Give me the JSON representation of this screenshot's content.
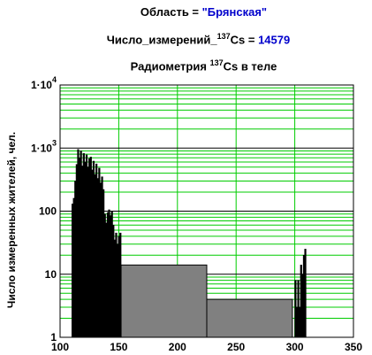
{
  "header": {
    "line1_label": "Область = ",
    "line1_value": "\"Брянская\"",
    "line2_label_pre": "Число_измерений_",
    "line2_sup": "137",
    "line2_label_post": "Cs = ",
    "line2_value": "14579",
    "line3_pre": "Радиометрия ",
    "line3_sup": "137",
    "line3_post": "Cs в теле"
  },
  "chart_data": {
    "type": "bar",
    "ylabel": "Число измеренных жителей, чел.",
    "x_ticks": [
      "100",
      "150",
      "200",
      "250",
      "300",
      "350"
    ],
    "y_tick_labels": [
      {
        "base": "1",
        "exp": ""
      },
      {
        "base": "10",
        "exp": ""
      },
      {
        "base": "100",
        "exp": ""
      },
      {
        "base": "1·10",
        "exp": "3"
      },
      {
        "base": "1·10",
        "exp": "4"
      }
    ],
    "xlim": [
      100,
      350
    ],
    "ylim": [
      1,
      10000
    ],
    "y_scale": "log",
    "grid": true,
    "colors": {
      "grid_major": "#000000",
      "grid_minor": "#00cc00",
      "thin_bars": "#000000",
      "wide_bars": "#808080"
    },
    "bars": [
      {
        "x0": 110.0,
        "x1": 111.2,
        "y": 130
      },
      {
        "x0": 111.2,
        "x1": 112.4,
        "y": 160
      },
      {
        "x0": 112.4,
        "x1": 113.6,
        "y": 300
      },
      {
        "x0": 113.6,
        "x1": 114.8,
        "y": 550
      },
      {
        "x0": 114.8,
        "x1": 116.0,
        "y": 950
      },
      {
        "x0": 116.0,
        "x1": 117.2,
        "y": 700
      },
      {
        "x0": 117.2,
        "x1": 118.4,
        "y": 900
      },
      {
        "x0": 118.4,
        "x1": 119.6,
        "y": 520
      },
      {
        "x0": 119.6,
        "x1": 120.8,
        "y": 820
      },
      {
        "x0": 120.8,
        "x1": 122.0,
        "y": 600
      },
      {
        "x0": 122.0,
        "x1": 123.2,
        "y": 780
      },
      {
        "x0": 123.2,
        "x1": 124.4,
        "y": 500
      },
      {
        "x0": 124.4,
        "x1": 125.6,
        "y": 680
      },
      {
        "x0": 125.6,
        "x1": 126.8,
        "y": 720
      },
      {
        "x0": 126.8,
        "x1": 128.0,
        "y": 450
      },
      {
        "x0": 128.0,
        "x1": 129.2,
        "y": 620
      },
      {
        "x0": 129.2,
        "x1": 130.4,
        "y": 380
      },
      {
        "x0": 130.4,
        "x1": 131.6,
        "y": 560
      },
      {
        "x0": 131.6,
        "x1": 132.8,
        "y": 330
      },
      {
        "x0": 132.8,
        "x1": 134.0,
        "y": 480
      },
      {
        "x0": 134.0,
        "x1": 135.2,
        "y": 280
      },
      {
        "x0": 135.2,
        "x1": 136.4,
        "y": 350
      },
      {
        "x0": 136.4,
        "x1": 137.6,
        "y": 220
      },
      {
        "x0": 137.6,
        "x1": 138.8,
        "y": 90
      },
      {
        "x0": 138.8,
        "x1": 140.0,
        "y": 65
      },
      {
        "x0": 140.0,
        "x1": 141.2,
        "y": 95
      },
      {
        "x0": 141.2,
        "x1": 142.4,
        "y": 105
      },
      {
        "x0": 142.4,
        "x1": 143.6,
        "y": 85
      },
      {
        "x0": 143.6,
        "x1": 144.8,
        "y": 100
      },
      {
        "x0": 144.8,
        "x1": 146.0,
        "y": 60
      },
      {
        "x0": 146.0,
        "x1": 147.2,
        "y": 35
      },
      {
        "x0": 147.2,
        "x1": 148.4,
        "y": 45
      },
      {
        "x0": 148.4,
        "x1": 149.6,
        "y": 30
      },
      {
        "x0": 149.6,
        "x1": 150.8,
        "y": 40
      },
      {
        "x0": 150.8,
        "x1": 152.0,
        "y": 45
      },
      {
        "x0": 152.0,
        "x1": 225.0,
        "y": 14,
        "wide": true
      },
      {
        "x0": 225.0,
        "x1": 298.0,
        "y": 4,
        "wide": true
      },
      {
        "x0": 300.0,
        "x1": 301.2,
        "y": 8
      },
      {
        "x0": 301.2,
        "x1": 302.4,
        "y": 3
      },
      {
        "x0": 302.4,
        "x1": 303.6,
        "y": 8
      },
      {
        "x0": 303.6,
        "x1": 304.8,
        "y": 3
      },
      {
        "x0": 304.8,
        "x1": 306.0,
        "y": 14
      },
      {
        "x0": 306.0,
        "x1": 307.2,
        "y": 10
      },
      {
        "x0": 307.2,
        "x1": 308.4,
        "y": 20
      },
      {
        "x0": 308.4,
        "x1": 309.6,
        "y": 25
      }
    ]
  }
}
